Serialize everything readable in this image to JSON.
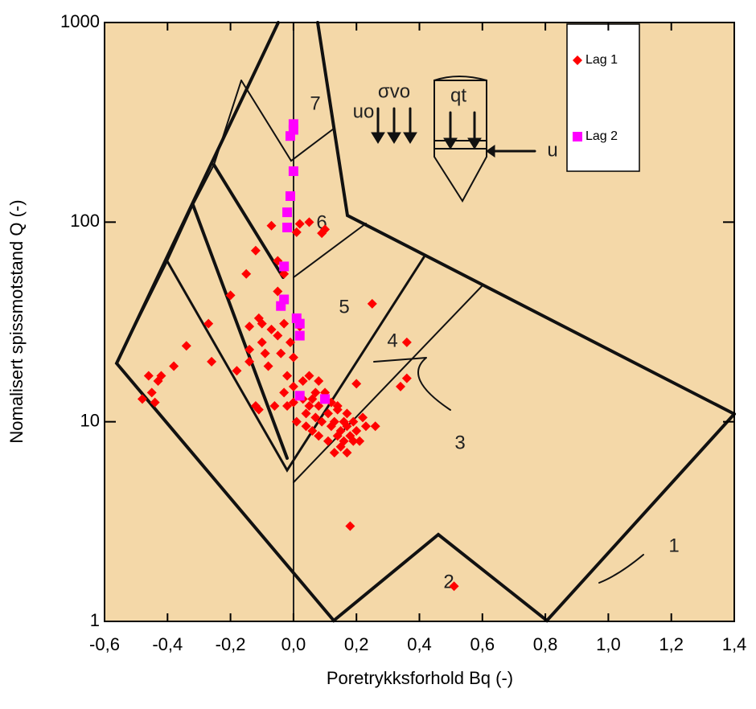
{
  "chart_data": {
    "type": "scatter",
    "xlabel": "Poretrykksforhold Bq (-)",
    "ylabel": "Nomalisert spissmotstand Q (-)",
    "xlim": [
      -0.6,
      1.4
    ],
    "ylim": [
      1,
      1000
    ],
    "ylog": true,
    "background": "#f4d8a8",
    "xticks": [
      {
        "value": -0.6,
        "label": "-0,6"
      },
      {
        "value": -0.4,
        "label": "-0,4"
      },
      {
        "value": -0.2,
        "label": "-0,2"
      },
      {
        "value": 0.0,
        "label": "0,0"
      },
      {
        "value": 0.2,
        "label": "0,2"
      },
      {
        "value": 0.4,
        "label": "0,4"
      },
      {
        "value": 0.6,
        "label": "0,6"
      },
      {
        "value": 0.8,
        "label": "0,8"
      },
      {
        "value": 1.0,
        "label": "1,0"
      },
      {
        "value": 1.2,
        "label": "1,2"
      },
      {
        "value": 1.4,
        "label": "1,4"
      }
    ],
    "yticks": [
      1,
      10,
      100,
      1000
    ],
    "annotations": [
      "7",
      "6",
      "5",
      "4",
      "3",
      "2",
      "1",
      "uo",
      "σvo",
      "qt",
      "u"
    ],
    "series": [
      {
        "name": "Lag 1",
        "color": "#ff0000",
        "marker": "diamond",
        "x": [
          -0.48,
          -0.46,
          -0.45,
          -0.44,
          -0.43,
          -0.42,
          -0.38,
          -0.34,
          -0.27,
          -0.26,
          -0.2,
          -0.18,
          -0.15,
          -0.14,
          -0.14,
          -0.14,
          -0.12,
          -0.12,
          -0.11,
          -0.11,
          -0.1,
          -0.1,
          -0.09,
          -0.08,
          -0.07,
          -0.07,
          -0.06,
          -0.05,
          -0.05,
          -0.05,
          -0.04,
          -0.04,
          -0.03,
          -0.03,
          -0.03,
          -0.02,
          -0.02,
          -0.01,
          0,
          0,
          0,
          0.01,
          0.01,
          0.02,
          0.02,
          0.03,
          0.03,
          0.04,
          0.04,
          0.05,
          0.05,
          0.06,
          0.06,
          0.07,
          0.07,
          0.08,
          0.08,
          0.09,
          0.09,
          0.1,
          0.1,
          0.11,
          0.11,
          0.12,
          0.12,
          0.13,
          0.13,
          0.14,
          0.14,
          0.15,
          0.15,
          0.16,
          0.16,
          0.17,
          0.17,
          0.18,
          0.18,
          0.19,
          0.2,
          0.2,
          0.21,
          0.22,
          0.23,
          0.25,
          0.26,
          0.34,
          0.36,
          0.36,
          0.51,
          0.05,
          0.08,
          0.1,
          0.14,
          0.17,
          0.19
        ],
        "y": [
          13,
          17,
          14,
          12.5,
          16,
          17,
          19,
          24,
          31,
          20,
          43,
          18,
          55,
          30,
          23,
          20,
          72,
          12,
          11.5,
          33,
          31,
          25,
          22,
          19,
          96,
          29,
          12,
          64,
          45,
          27,
          38,
          22,
          55,
          31,
          14,
          17,
          12,
          25,
          21,
          15,
          12.5,
          10,
          89,
          98,
          30,
          16,
          13,
          11,
          9.5,
          100,
          12,
          13,
          9,
          10.5,
          14,
          12,
          8.5,
          88,
          10,
          92,
          14,
          8,
          11,
          9.5,
          12.5,
          7,
          10,
          8.5,
          11.5,
          7.5,
          9,
          10,
          8,
          11,
          9.5,
          8.5,
          3,
          10,
          9,
          15.5,
          8,
          10.5,
          9.5,
          39,
          9.5,
          15,
          16.5,
          25,
          1.5,
          17,
          16,
          13,
          12,
          7,
          8
        ]
      },
      {
        "name": "Lag 2",
        "color": "#ff00ff",
        "marker": "square",
        "x": [
          0,
          0,
          -0.01,
          0,
          -0.01,
          -0.02,
          -0.02,
          -0.03,
          -0.03,
          -0.04,
          0.01,
          0.02,
          0.02,
          0.02,
          0.1
        ],
        "y": [
          310,
          290,
          270,
          180,
          135,
          112,
          94,
          60,
          41,
          38,
          33,
          31,
          27,
          13.5,
          13
        ]
      }
    ]
  }
}
